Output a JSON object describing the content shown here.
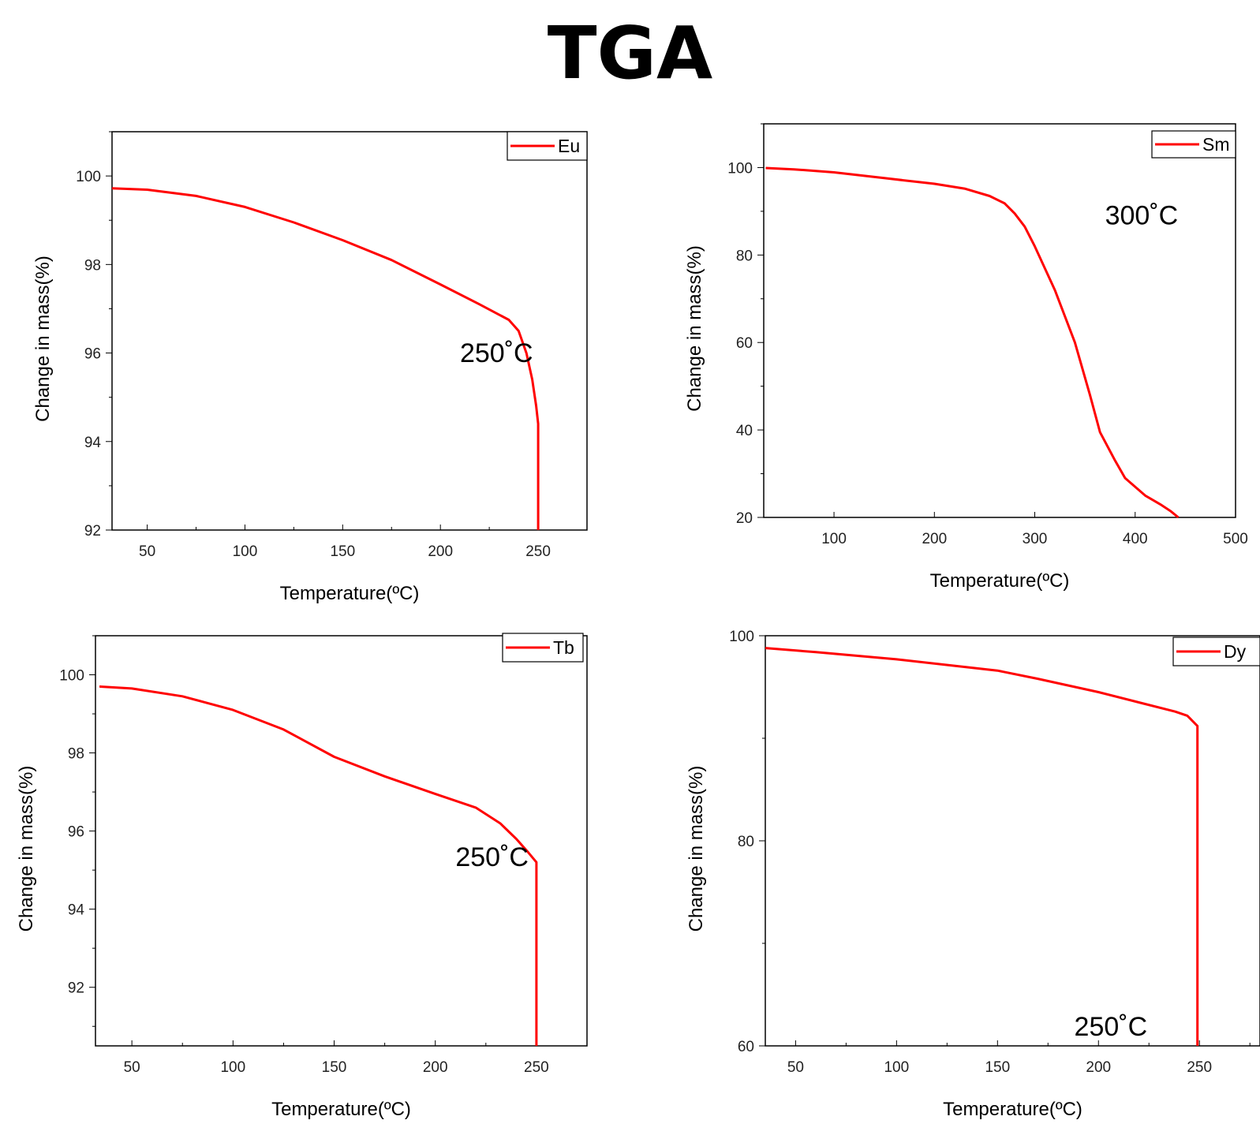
{
  "title": "TGA",
  "colors": {
    "series": "#ff0000",
    "axis": "#000000",
    "legend_border": "#000000"
  },
  "chart_data": [
    {
      "type": "line",
      "title": "",
      "xlabel": "Temperature(ºC)",
      "ylabel": "Change in mass(%)",
      "xlim": [
        32,
        275
      ],
      "ylim": [
        92,
        101
      ],
      "xticks": [
        50,
        100,
        150,
        200,
        250
      ],
      "yticks": [
        92,
        94,
        96,
        98,
        100
      ],
      "grid": false,
      "legend_position": "top-right",
      "annotation": {
        "text": "250˚C",
        "x": 210,
        "y": 95.8
      },
      "series": [
        {
          "name": "Eu",
          "x": [
            32,
            50,
            75,
            100,
            125,
            150,
            175,
            200,
            220,
            235,
            240,
            244,
            247,
            249,
            250,
            250,
            250
          ],
          "y": [
            99.72,
            99.69,
            99.55,
            99.3,
            98.95,
            98.55,
            98.1,
            97.55,
            97.1,
            96.75,
            96.5,
            96.0,
            95.4,
            94.8,
            94.4,
            93.0,
            92.0
          ]
        }
      ]
    },
    {
      "type": "line",
      "title": "",
      "xlabel": "Temperature(ºC)",
      "ylabel": "Change in mass(%)",
      "xlim": [
        30,
        500
      ],
      "ylim": [
        20,
        110
      ],
      "xticks": [
        100,
        200,
        300,
        400,
        500
      ],
      "yticks": [
        20,
        40,
        60,
        80,
        100
      ],
      "grid": false,
      "legend_position": "top-right",
      "annotation": {
        "text": "300˚C",
        "x": 370,
        "y": 87
      },
      "series": [
        {
          "name": "Sm",
          "x": [
            32,
            60,
            100,
            150,
            200,
            230,
            255,
            270,
            280,
            290,
            300,
            320,
            340,
            355,
            365,
            380,
            390,
            400,
            410,
            425,
            435,
            443
          ],
          "y": [
            99.9,
            99.6,
            98.9,
            97.6,
            96.3,
            95.2,
            93.5,
            91.8,
            89.5,
            86.5,
            82.0,
            72.0,
            60.0,
            48.0,
            39.5,
            33.0,
            29.0,
            27.0,
            25.0,
            23.0,
            21.5,
            20.0
          ]
        }
      ]
    },
    {
      "type": "line",
      "title": "",
      "xlabel": "Temperature(ºC)",
      "ylabel": "Change in mass(%)",
      "xlim": [
        32,
        275
      ],
      "ylim": [
        90.5,
        101
      ],
      "xticks": [
        50,
        100,
        150,
        200,
        250
      ],
      "yticks": [
        92,
        94,
        96,
        98,
        100
      ],
      "grid": false,
      "legend_position": "top-right",
      "annotation": {
        "text": "250˚C",
        "x": 210,
        "y": 95.1
      },
      "series": [
        {
          "name": "Tb",
          "x": [
            34,
            50,
            75,
            100,
            125,
            150,
            175,
            200,
            220,
            232,
            240,
            246,
            250,
            250,
            250
          ],
          "y": [
            99.7,
            99.65,
            99.45,
            99.1,
            98.6,
            97.9,
            97.4,
            96.95,
            96.6,
            96.2,
            95.8,
            95.45,
            95.2,
            93.0,
            90.5
          ]
        }
      ]
    },
    {
      "type": "line",
      "title": "",
      "xlabel": "Temperature(ºC)",
      "ylabel": "Change in mass(%)",
      "xlim": [
        35,
        280
      ],
      "ylim": [
        60,
        100
      ],
      "xticks": [
        50,
        100,
        150,
        200,
        250
      ],
      "yticks": [
        60,
        80,
        100
      ],
      "grid": false,
      "legend_position": "top-right",
      "annotation": {
        "text": "250˚C",
        "x": 188,
        "y": 61
      },
      "series": [
        {
          "name": "Dy",
          "x": [
            35,
            60,
            100,
            150,
            170,
            200,
            220,
            238,
            244,
            248,
            249,
            249,
            249
          ],
          "y": [
            98.8,
            98.4,
            97.7,
            96.6,
            95.8,
            94.5,
            93.5,
            92.6,
            92.2,
            91.4,
            91.2,
            75.0,
            60.0
          ]
        }
      ]
    }
  ]
}
